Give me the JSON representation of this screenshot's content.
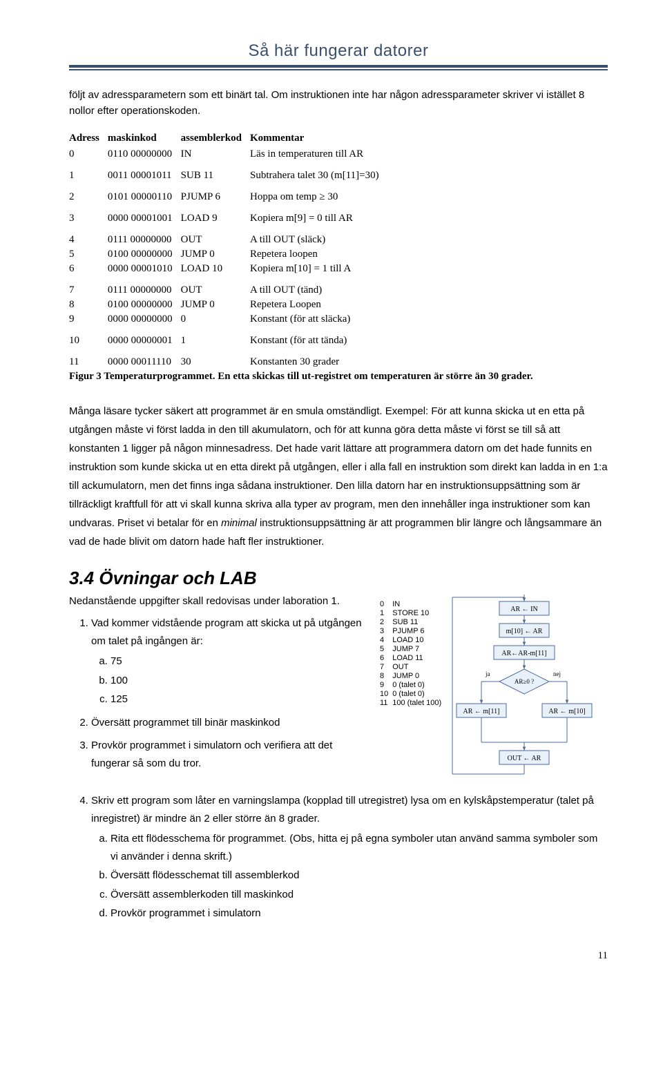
{
  "header": {
    "title": "Så här fungerar datorer"
  },
  "intro": "följt av adressparametern som ett binärt tal. Om instruktionen inte har någon adressparameter skriver vi istället 8 nollor efter operationskoden.",
  "table": {
    "headers": [
      "Adress",
      "maskinkod",
      "assemblerkod",
      "Kommentar"
    ],
    "rows": [
      {
        "a": "0",
        "m": "0110 00000000",
        "asm": "IN",
        "c": "Läs in temperaturen till AR"
      },
      {
        "a": "1",
        "m": "0011 00001011",
        "asm": "SUB 11",
        "c": "Subtrahera talet 30 (m[11]=30)"
      },
      {
        "a": "2",
        "m": "0101 00000110",
        "asm": "PJUMP 6",
        "c": "Hoppa om temp ≥ 30"
      },
      {
        "a": "3",
        "m": "0000 00001001",
        "asm": "LOAD 9",
        "c": "Kopiera  m[9] = 0 till AR"
      },
      {
        "a": "4",
        "m": "0111 00000000",
        "asm": "OUT",
        "c": "A till OUT (släck)"
      },
      {
        "a": "5",
        "m": "0100 00000000",
        "asm": "JUMP 0",
        "c": "Repetera loopen"
      },
      {
        "a": "6",
        "m": "0000 00001010",
        "asm": "LOAD 10",
        "c": "Kopiera m[10] = 1 till A"
      },
      {
        "a": "7",
        "m": "0111 00000000",
        "asm": "OUT",
        "c": "A till OUT (tänd)"
      },
      {
        "a": "8",
        "m": "0100 00000000",
        "asm": "JUMP 0",
        "c": "Repetera Loopen"
      },
      {
        "a": "9",
        "m": "0000 00000000",
        "asm": "0",
        "c": "Konstant (för att släcka)"
      },
      {
        "a": "10",
        "m": "0000 00000001",
        "asm": "1",
        "c": "Konstant (för att tända)"
      },
      {
        "a": "11",
        "m": "0000 00011110",
        "asm": "30",
        "c": "Konstanten 30 grader"
      }
    ],
    "gaps_after": [
      0,
      1,
      2,
      3,
      6,
      9,
      10
    ]
  },
  "fig_caption": "Figur 3 Temperaturprogrammet. En etta skickas till ut-registret om temperaturen är större än 30 grader.",
  "big_para": "Många läsare tycker säkert att programmet är en smula omständligt. Exempel: För att kunna skicka ut en etta på utgången måste vi först ladda in den till akumulatorn, och för att kunna göra detta måste vi först se till så att konstanten 1 ligger på någon minnesadress. Det hade varit lättare att programmera datorn om det hade funnits en instruktion som kunde skicka ut en etta direkt på utgången,  eller i alla fall en instruktion som direkt kan ladda in en 1:a till ackumulatorn, men det finns inga sådana instruktioner. Den lilla datorn har en instruktionsuppsättning som är tillräckligt kraftfull för att vi skall kunna skriva alla typer av program, men den innehåller inga instruktioner som kan undvaras. Priset vi betalar för en ",
  "big_para_ital": "minimal",
  "big_para_tail": " instruktionsuppsättning är att programmen blir längre och långsammare än vad de hade blivit om datorn hade haft fler instruktioner.",
  "section": "3.4  Övningar och LAB",
  "ex_intro": "Nedanstående uppgifter skall redovisas under laboration 1.",
  "ex1": "Vad kommer vidstående program att skicka ut på utgången om talet på ingången är:",
  "ex1a": "75",
  "ex1b": "100",
  "ex1c": "125",
  "ex2": "Översätt programmet till binär maskinkod",
  "ex3": "Provkör programmet i simulatorn och verifiera att det fungerar så som du tror.",
  "ex4": "Skriv ett program som låter en varningslampa (kopplad till utregistret) lysa om en kylskåpstemperatur (talet på inregistret) är mindre än 2 eller större än 8 grader.",
  "ex4a": "Rita ett flödesschema för programmet. (Obs, hitta ej på egna symboler utan använd samma symboler som vi använder i denna skrift.)",
  "ex4b": "Översätt flödesschemat till assemblerkod",
  "ex4c": "Översätt assemblerkoden till maskinkod",
  "ex4d": "Provkör programmet i simulatorn",
  "flow_prog": [
    {
      "n": "0",
      "t": "IN"
    },
    {
      "n": "1",
      "t": "STORE 10"
    },
    {
      "n": "2",
      "t": "SUB 11"
    },
    {
      "n": "3",
      "t": "PJUMP 6"
    },
    {
      "n": "4",
      "t": "LOAD 10"
    },
    {
      "n": "5",
      "t": "JUMP 7"
    },
    {
      "n": "6",
      "t": "LOAD 11"
    },
    {
      "n": "7",
      "t": "OUT"
    },
    {
      "n": "8",
      "t": "JUMP 0"
    },
    {
      "n": "9",
      "t": "0 (talet 0)"
    },
    {
      "n": "10",
      "t": "0 (talet 0)"
    },
    {
      "n": "11",
      "t": "100 (talet 100)"
    }
  ],
  "flow": {
    "box_fill": "#e8f0f8",
    "box_stroke": "#4a6a9a",
    "line_stroke": "#4a6a9a",
    "text_color": "#000000",
    "label_ja": "ja",
    "label_nej": "nej",
    "nodes": {
      "n1": "AR ← IN",
      "n2": "m[10] ← AR",
      "n3": "AR←AR-m[11]",
      "n4": "AR≥0 ?",
      "n5l": "AR ← m[11]",
      "n5r": "AR ← m[10]",
      "n6": "OUT ← AR"
    }
  },
  "page_num": "11"
}
